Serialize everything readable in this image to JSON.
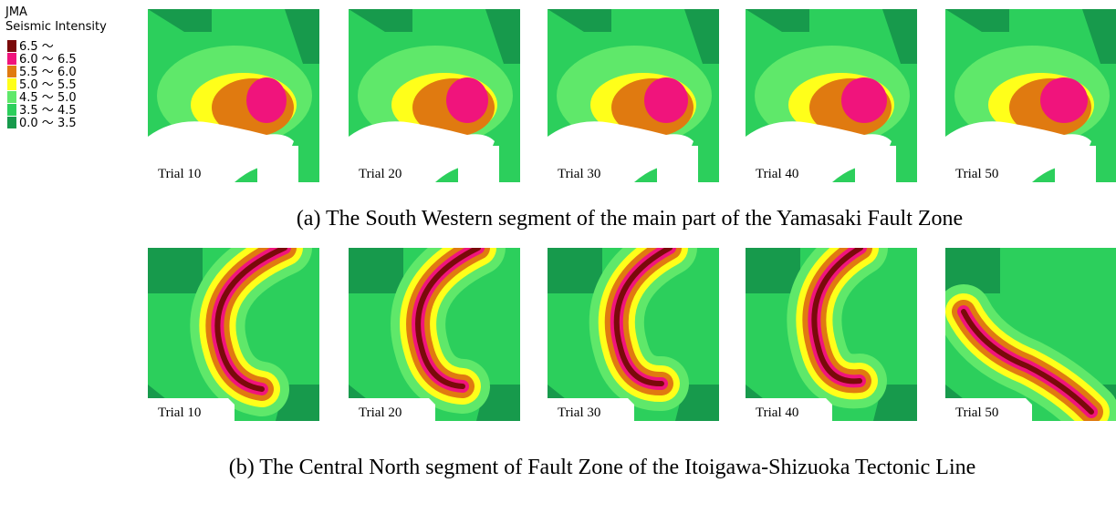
{
  "legend": {
    "title": "JMA",
    "subtitle": "Seismic Intensity",
    "items": [
      {
        "label": "6.5 ～",
        "color": "#7a0a0a"
      },
      {
        "label": "6.0 ～ 6.5",
        "color": "#f0147c"
      },
      {
        "label": "5.5 ～ 6.0",
        "color": "#e07a10"
      },
      {
        "label": "5.0 ～ 5.5",
        "color": "#ffff1a"
      },
      {
        "label": "4.5 ～ 5.0",
        "color": "#5fe86a"
      },
      {
        "label": "3.5 ～ 4.5",
        "color": "#2ccf5c"
      },
      {
        "label": "0.0 ～ 3.5",
        "color": "#179a4c"
      }
    ]
  },
  "panels": [
    {
      "caption": "(a) The South Western segment of the main part of the Yamasaki Fault Zone",
      "trials": [
        "Trial 10",
        "Trial 20",
        "Trial 30",
        "Trial 40",
        "Trial 50"
      ]
    },
    {
      "caption": "(b) The Central North segment of Fault Zone of the Itoigawa-Shizuoka Tectonic Line",
      "trials": [
        "Trial 10",
        "Trial 20",
        "Trial 30",
        "Trial 40",
        "Trial 50"
      ]
    }
  ]
}
